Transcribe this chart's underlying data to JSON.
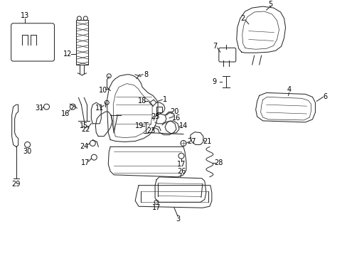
{
  "background_color": "#ffffff",
  "figsize": [
    4.89,
    3.6
  ],
  "dpi": 100,
  "line_color": "#2a2a2a",
  "label_color": "#000000",
  "label_fontsize": 7.0
}
